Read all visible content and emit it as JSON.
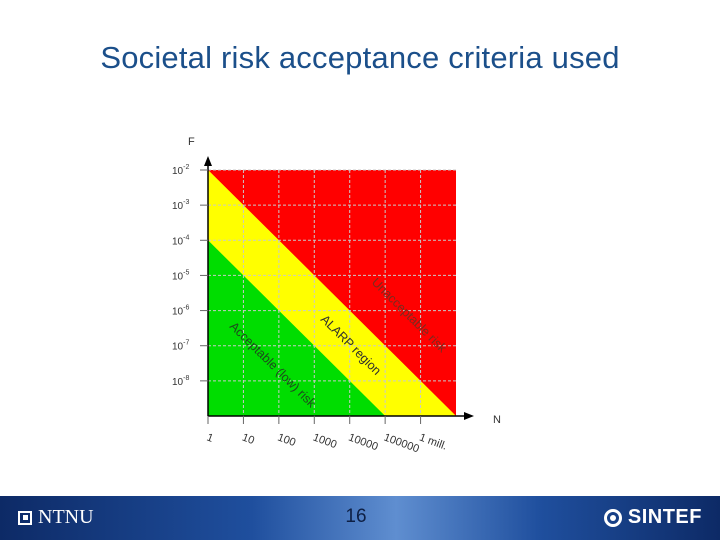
{
  "slide": {
    "title": "Societal risk acceptance criteria used",
    "page_number": "16"
  },
  "footer": {
    "left_logo_text": "NTNU",
    "right_logo_text": "SINTEF"
  },
  "colors": {
    "unacceptable": "#ff0000",
    "alarp": "#ffff00",
    "acceptable": "#00dd00",
    "title": "#1b4f8a"
  },
  "chart_data": {
    "type": "area",
    "xlabel": "N",
    "ylabel": "F",
    "x_scale": "log",
    "y_scale": "log",
    "xlim": [
      1,
      10000000
    ],
    "ylim": [
      1e-09,
      0.01
    ],
    "grid": true,
    "x_ticks": [
      "1",
      "10",
      "100",
      "1000",
      "10000",
      "100000",
      "1 mill."
    ],
    "y_ticks": [
      {
        "base": "10",
        "exp": "-2"
      },
      {
        "base": "10",
        "exp": "-3"
      },
      {
        "base": "10",
        "exp": "-4"
      },
      {
        "base": "10",
        "exp": "-5"
      },
      {
        "base": "10",
        "exp": "-6"
      },
      {
        "base": "10",
        "exp": "-7"
      },
      {
        "base": "10",
        "exp": "-8"
      }
    ],
    "series": [
      {
        "name": "Unacceptable risk",
        "x": [
          1,
          10000000
        ],
        "y": [
          0.01,
          1e-09
        ]
      },
      {
        "name": "Acceptable (low) risk",
        "x": [
          1,
          100000
        ],
        "y": [
          0.0001,
          1e-09
        ]
      }
    ],
    "region_labels": [
      "Unacceptable risk",
      "ALARP region",
      "Acceptable (low) risk"
    ]
  }
}
